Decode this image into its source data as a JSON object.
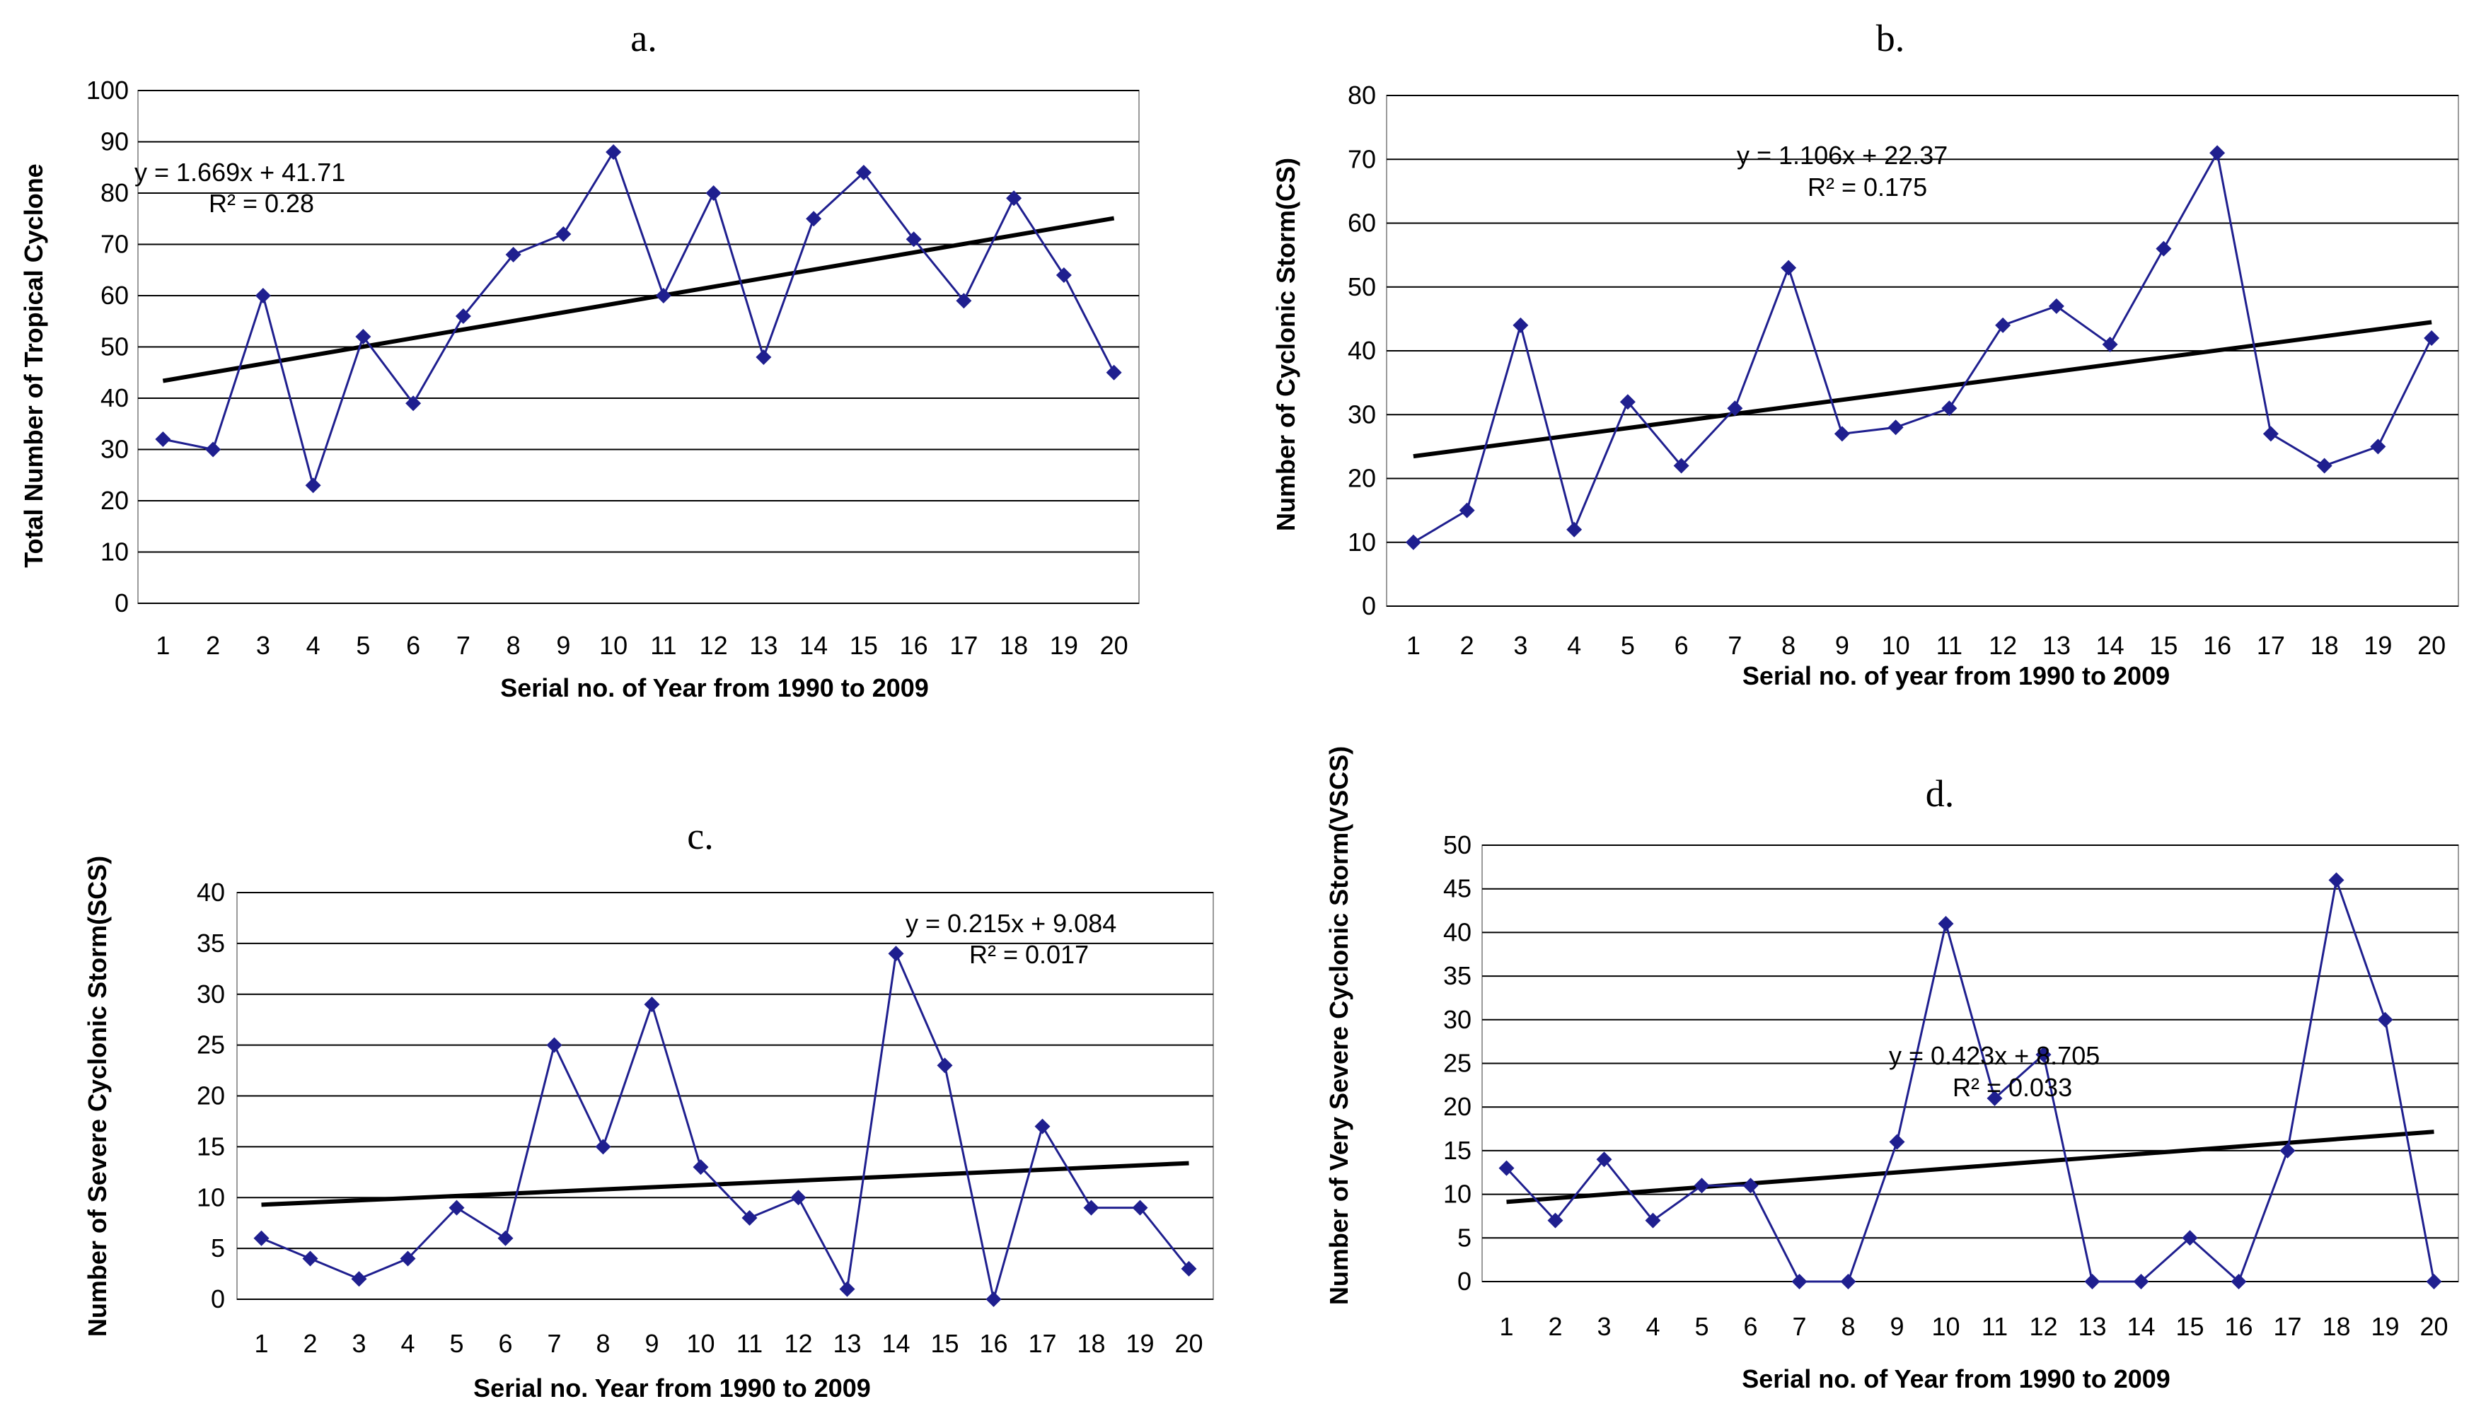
{
  "chart_data": [
    {
      "panel": "a.",
      "type": "line",
      "xlabel": "Serial no. of Year  from 1990 to 2009",
      "ylabel": "Total Number of Tropical Cyclone",
      "x": [
        1,
        2,
        3,
        4,
        5,
        6,
        7,
        8,
        9,
        10,
        11,
        12,
        13,
        14,
        15,
        16,
        17,
        18,
        19,
        20
      ],
      "values": [
        32,
        30,
        60,
        23,
        52,
        39,
        56,
        68,
        72,
        88,
        60,
        80,
        48,
        75,
        84,
        71,
        59,
        79,
        64,
        45
      ],
      "ylim": [
        0,
        100
      ],
      "ytick_step": 10,
      "grid": true,
      "trend": {
        "slope": 1.669,
        "intercept": 41.71,
        "equation": "y = 1.669x + 41.71",
        "r2": "R² = 0.28"
      }
    },
    {
      "panel": "b.",
      "type": "line",
      "xlabel": "Serial no. of year from 1990 to 2009",
      "ylabel": "Number of Cyclonic Storm(CS)",
      "x": [
        1,
        2,
        3,
        4,
        5,
        6,
        7,
        8,
        9,
        10,
        11,
        12,
        13,
        14,
        15,
        16,
        17,
        18,
        19,
        20
      ],
      "values": [
        10,
        15,
        44,
        12,
        32,
        22,
        31,
        53,
        27,
        28,
        31,
        44,
        47,
        41,
        56,
        71,
        27,
        22,
        25,
        42
      ],
      "ylim": [
        0,
        80
      ],
      "ytick_step": 10,
      "grid": true,
      "trend": {
        "slope": 1.106,
        "intercept": 22.37,
        "equation": "y = 1.106x + 22.37",
        "r2": "R² = 0.175"
      }
    },
    {
      "panel": "c.",
      "type": "line",
      "xlabel": "Serial no. Year from 1990 to 2009",
      "ylabel": "Number of Severe Cyclonic Storm(SCS)",
      "x": [
        1,
        2,
        3,
        4,
        5,
        6,
        7,
        8,
        9,
        10,
        11,
        12,
        13,
        14,
        15,
        16,
        17,
        18,
        19,
        20
      ],
      "values": [
        6,
        4,
        2,
        4,
        9,
        6,
        25,
        15,
        29,
        13,
        8,
        10,
        1,
        34,
        23,
        0,
        17,
        9,
        9,
        3
      ],
      "ylim": [
        0,
        40
      ],
      "ytick_step": 5,
      "grid": true,
      "trend": {
        "slope": 0.215,
        "intercept": 9.084,
        "equation": "y = 0.215x + 9.084",
        "r2": "R² = 0.017"
      }
    },
    {
      "panel": "d.",
      "type": "line",
      "xlabel": "Serial no. of Year from 1990 to 2009",
      "ylabel": "Number of Very Severe Cyclonic Storm(VSCS)",
      "x": [
        1,
        2,
        3,
        4,
        5,
        6,
        7,
        8,
        9,
        10,
        11,
        12,
        13,
        14,
        15,
        16,
        17,
        18,
        19,
        20
      ],
      "values": [
        13,
        7,
        14,
        7,
        11,
        11,
        0,
        0,
        16,
        41,
        21,
        26,
        0,
        0,
        5,
        0,
        15,
        46,
        30,
        0
      ],
      "ylim": [
        0,
        50
      ],
      "ytick_step": 5,
      "grid": true,
      "trend": {
        "slope": 0.423,
        "intercept": 8.705,
        "equation": "y = 0.423x + 8.705",
        "r2": "R² = 0.033"
      }
    }
  ],
  "colors": {
    "series": "#1f1f8f",
    "trend": "#000000",
    "grid": "#000000"
  }
}
